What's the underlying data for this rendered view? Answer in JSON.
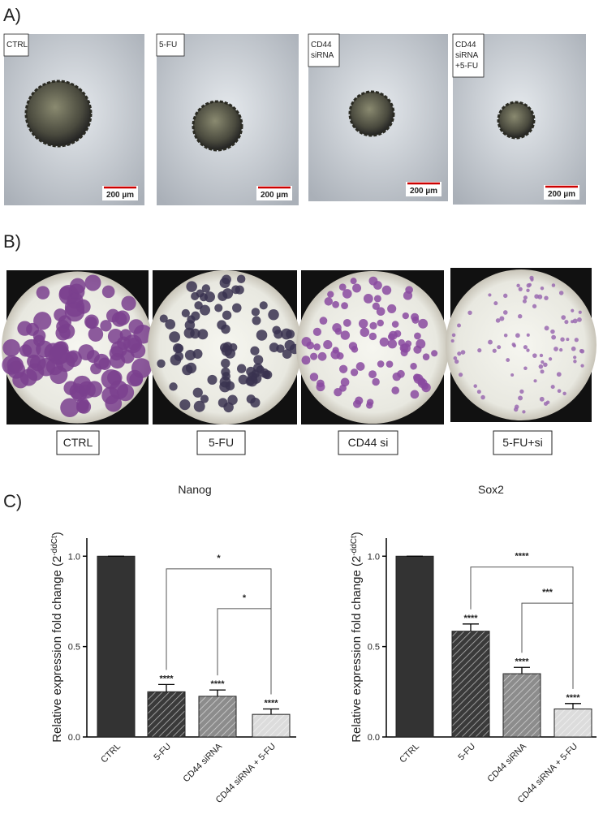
{
  "panel_labels": [
    "A)",
    "B)",
    "C)"
  ],
  "panel_a": {
    "labels": [
      [
        "CTRL"
      ],
      [
        "5-FU"
      ],
      [
        "CD44",
        "siRNA"
      ],
      [
        "CD44",
        "siRNA",
        "+5-FU"
      ]
    ],
    "scale_bar": "200 µm"
  },
  "panel_b": {
    "labels": [
      "CTRL",
      "5-FU",
      "CD44 si",
      "5-FU+si"
    ]
  },
  "chart_data": [
    {
      "type": "bar",
      "title": "Nanog",
      "y_label": "Relative expression fold change (2",
      "y_label_superscript": "-ddCt",
      "y_label_end": ")",
      "categories": [
        "CTRL",
        "5-FU",
        "CD44 siRNA",
        "CD44 siRNA + 5-FU"
      ],
      "values": [
        1.0,
        0.25,
        0.225,
        0.125
      ],
      "errors": [
        0,
        0.04,
        0.035,
        0.03
      ],
      "significance": [
        null,
        "****",
        "****",
        "****"
      ],
      "colors": [
        "#333333",
        "#3a3a3a",
        "#8c8c8c",
        "#dcdcdc"
      ],
      "hatched": [
        false,
        true,
        true,
        true
      ],
      "brackets": [
        {
          "from": 1,
          "to": 3,
          "level": 0.93,
          "label": "*"
        },
        {
          "from": 2,
          "to": 3,
          "level": 0.71,
          "label": "*"
        }
      ],
      "ylim": [
        0,
        1.1
      ],
      "yticks": [
        {
          "value": 0,
          "label": "0.0"
        },
        {
          "value": 0.5,
          "label": "0.5"
        },
        {
          "value": 1,
          "label": "1.0"
        }
      ]
    },
    {
      "type": "bar",
      "title": "Sox2",
      "y_label": "Relative expression fold change (2",
      "y_label_superscript": "-ddCt",
      "y_label_end": ")",
      "categories": [
        "CTRL",
        "5-FU",
        "CD44 siRNA",
        "CD44 siRNA + 5-FU"
      ],
      "values": [
        1.0,
        0.585,
        0.35,
        0.155
      ],
      "errors": [
        0,
        0.04,
        0.035,
        0.03
      ],
      "significance": [
        null,
        "****",
        "****",
        "****"
      ],
      "colors": [
        "#333333",
        "#3a3a3a",
        "#8c8c8c",
        "#dcdcdc"
      ],
      "hatched": [
        false,
        true,
        true,
        true
      ],
      "brackets": [
        {
          "from": 1,
          "to": 3,
          "level": 0.94,
          "label": "****"
        },
        {
          "from": 2,
          "to": 3,
          "level": 0.74,
          "label": "***"
        }
      ],
      "ylim": [
        0,
        1.1
      ],
      "yticks": [
        {
          "value": 0,
          "label": "0.0"
        },
        {
          "value": 0.5,
          "label": "0.5"
        },
        {
          "value": 1,
          "label": "1.0"
        }
      ]
    }
  ]
}
